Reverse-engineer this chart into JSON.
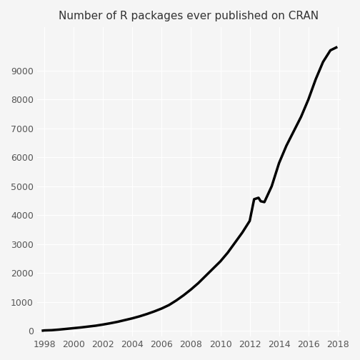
{
  "title": "Number of R packages ever published on CRAN",
  "background_color": "#f5f5f5",
  "panel_background": "#f5f5f5",
  "line_color": "#000000",
  "line_width": 2.5,
  "grid_color": "#ffffff",
  "xlim": [
    1997.5,
    2018.2
  ],
  "ylim": [
    -200,
    10500
  ],
  "xticks": [
    1998,
    2000,
    2002,
    2004,
    2006,
    2008,
    2010,
    2012,
    2014,
    2016,
    2018
  ],
  "yticks": [
    0,
    1000,
    2000,
    3000,
    4000,
    5000,
    6000,
    7000,
    8000,
    9000
  ],
  "data": {
    "years": [
      1997.9,
      1998.0,
      1998.5,
      1999.0,
      1999.5,
      2000.0,
      2000.5,
      2001.0,
      2001.5,
      2002.0,
      2002.5,
      2003.0,
      2003.5,
      2004.0,
      2004.5,
      2005.0,
      2005.5,
      2006.0,
      2006.5,
      2007.0,
      2007.5,
      2008.0,
      2008.5,
      2009.0,
      2009.5,
      2010.0,
      2010.5,
      2011.0,
      2011.5,
      2012.0,
      2012.3,
      2012.6,
      2012.75,
      2013.0,
      2013.5,
      2014.0,
      2014.5,
      2015.0,
      2015.5,
      2016.0,
      2016.5,
      2017.0,
      2017.5,
      2017.9
    ],
    "values": [
      5,
      12,
      20,
      40,
      65,
      90,
      115,
      145,
      175,
      215,
      260,
      310,
      370,
      430,
      500,
      580,
      670,
      770,
      890,
      1050,
      1230,
      1430,
      1650,
      1900,
      2150,
      2400,
      2700,
      3050,
      3400,
      3800,
      4550,
      4600,
      4480,
      4450,
      5000,
      5800,
      6400,
      6900,
      7400,
      8000,
      8700,
      9300,
      9700,
      9800
    ]
  }
}
